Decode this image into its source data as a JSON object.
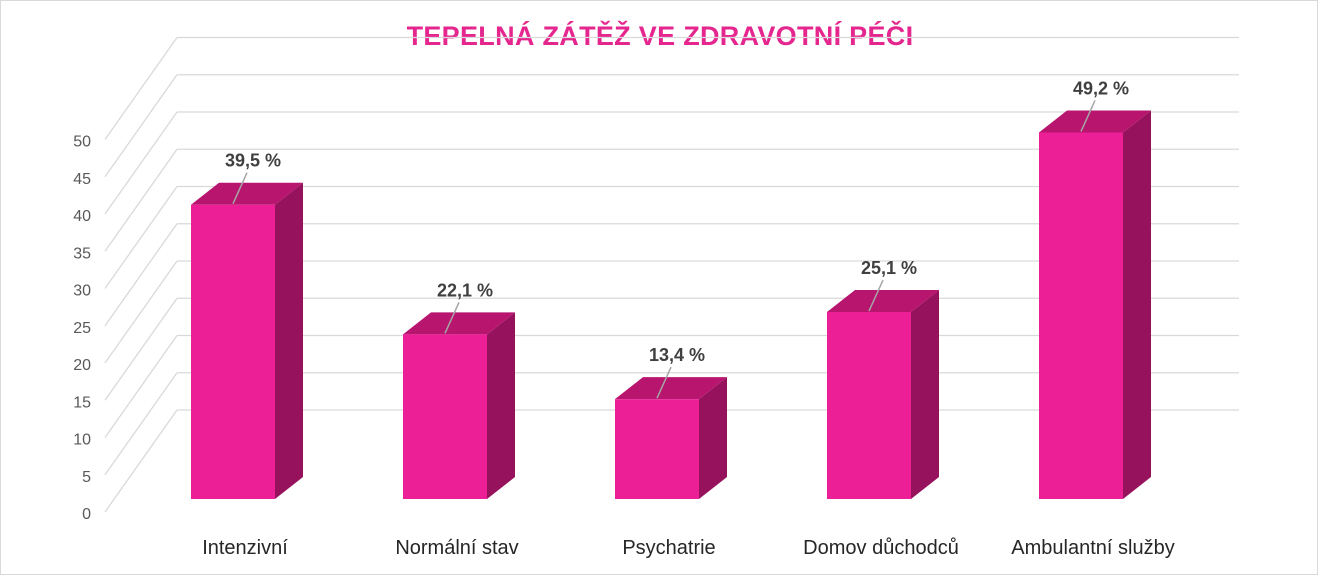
{
  "chart_data": {
    "type": "bar",
    "title": "TEPELNÁ ZÁTĚŽ VE ZDRAVOTNÍ PÉČI",
    "categories": [
      "Intenzivní",
      "Normální stav",
      "Psychatrie",
      "Domov důchodců",
      "Ambulantní služby"
    ],
    "values": [
      39.5,
      22.1,
      13.4,
      25.1,
      49.2
    ],
    "data_labels": [
      "39,5 %",
      "22,1 %",
      "13,4 %",
      "25,1 %",
      "49,2 %"
    ],
    "yticks": [
      "0",
      "5",
      "10",
      "15",
      "20",
      "25",
      "30",
      "35",
      "40",
      "45",
      "50"
    ],
    "ylim": [
      0,
      50
    ],
    "grid": true,
    "legend": "none",
    "xlabel": "",
    "ylabel": "",
    "colors": {
      "bar_front": "#ec1f97",
      "bar_top": "#b8156e",
      "bar_side": "#97125c",
      "title": "#e5268f",
      "grid": "#d9d9d9"
    }
  }
}
